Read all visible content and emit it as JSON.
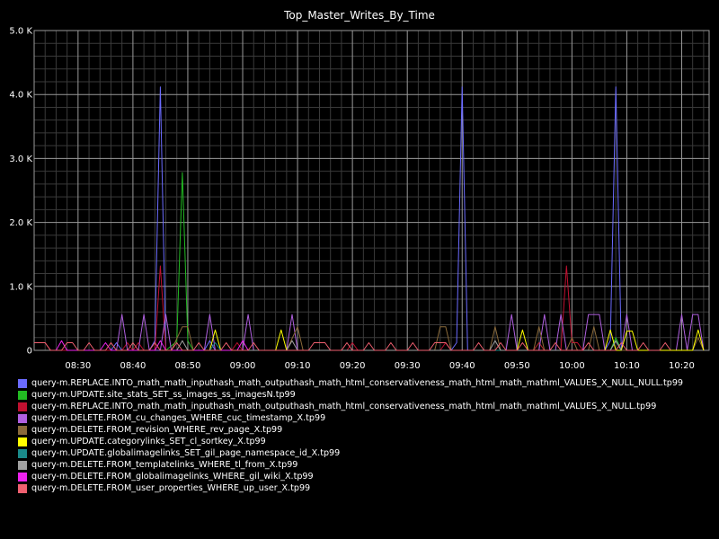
{
  "chart_data": {
    "type": "line",
    "title": "Top_Master_Writes_By_Time",
    "xlabel": "",
    "ylabel": "",
    "x_range": [
      "08:22",
      "10:25"
    ],
    "ylim": [
      0,
      5000
    ],
    "y_ticks": [
      {
        "value": 0,
        "label": "0"
      },
      {
        "value": 1000,
        "label": "1.0 K"
      },
      {
        "value": 2000,
        "label": "2.0 K"
      },
      {
        "value": 3000,
        "label": "3.0 K"
      },
      {
        "value": 4000,
        "label": "4.0 K"
      },
      {
        "value": 5000,
        "label": "5.0 K"
      }
    ],
    "x_ticks": [
      "08:30",
      "08:40",
      "08:50",
      "09:00",
      "09:10",
      "09:20",
      "09:30",
      "09:40",
      "09:50",
      "10:00",
      "10:10",
      "10:20"
    ],
    "grid": true,
    "legend_position": "bottom",
    "series": [
      {
        "name": "query-m.REPLACE.INTO_math_math_inputhash_math_outputhash_math_html_conservativeness_math_html_math_mathml_VALUES_X_NULL_NULL.tp99",
        "color": "#6b6bff",
        "points": [
          [
            "08:36",
            0
          ],
          [
            "08:37",
            120
          ],
          [
            "08:38",
            0
          ],
          [
            "08:43",
            0
          ],
          [
            "08:44",
            150
          ],
          [
            "08:45",
            4120
          ],
          [
            "08:46",
            0
          ],
          [
            "08:53",
            0
          ],
          [
            "08:54",
            150
          ],
          [
            "08:55",
            0
          ],
          [
            "09:38",
            0
          ],
          [
            "09:39",
            120
          ],
          [
            "09:40",
            4120
          ],
          [
            "09:41",
            0
          ],
          [
            "10:06",
            0
          ],
          [
            "10:07",
            150
          ],
          [
            "10:08",
            4120
          ],
          [
            "10:09",
            0
          ]
        ]
      },
      {
        "name": "query-m.UPDATE.site_stats_SET_ss_images_ss_imagesN.tp99",
        "color": "#22bb22",
        "points": [
          [
            "08:46",
            0
          ],
          [
            "08:48",
            140
          ],
          [
            "08:49",
            2780
          ],
          [
            "08:50",
            150
          ],
          [
            "08:51",
            0
          ],
          [
            "09:53",
            0
          ],
          [
            "09:54",
            120
          ],
          [
            "09:55",
            0
          ],
          [
            "10:07",
            0
          ],
          [
            "10:08",
            200
          ],
          [
            "10:09",
            0
          ]
        ]
      },
      {
        "name": "query-m.REPLACE.INTO_math_math_inputhash_math_outputhash_math_html_conservativeness_math_html_math_mathml_VALUES_X_NULL.tp99",
        "color": "#c01030",
        "points": [
          [
            "08:22",
            120
          ],
          [
            "08:24",
            120
          ],
          [
            "08:25",
            0
          ],
          [
            "08:38",
            0
          ],
          [
            "08:39",
            120
          ],
          [
            "08:40",
            0
          ],
          [
            "08:41",
            120
          ],
          [
            "08:42",
            0
          ],
          [
            "08:44",
            0
          ],
          [
            "08:45",
            1320
          ],
          [
            "08:46",
            0
          ],
          [
            "08:58",
            0
          ],
          [
            "08:59",
            120
          ],
          [
            "09:00",
            0
          ],
          [
            "09:19",
            0
          ],
          [
            "09:20",
            120
          ],
          [
            "09:21",
            0
          ],
          [
            "09:36",
            0
          ],
          [
            "09:37",
            120
          ],
          [
            "09:38",
            0
          ],
          [
            "09:53",
            0
          ],
          [
            "09:54",
            120
          ],
          [
            "09:55",
            0
          ],
          [
            "09:58",
            0
          ],
          [
            "09:59",
            1320
          ],
          [
            "10:00",
            120
          ],
          [
            "10:01",
            120
          ],
          [
            "10:02",
            0
          ]
        ]
      },
      {
        "name": "query-m.DELETE.FROM_cu_changes_WHERE_cuc_timestamp_X.tp99",
        "color": "#b060e0",
        "points": [
          [
            "08:37",
            0
          ],
          [
            "08:38",
            560
          ],
          [
            "08:39",
            0
          ],
          [
            "08:41",
            0
          ],
          [
            "08:42",
            560
          ],
          [
            "08:43",
            0
          ],
          [
            "08:45",
            0
          ],
          [
            "08:46",
            560
          ],
          [
            "08:47",
            0
          ],
          [
            "08:53",
            0
          ],
          [
            "08:54",
            560
          ],
          [
            "08:55",
            0
          ],
          [
            "09:00",
            0
          ],
          [
            "09:01",
            560
          ],
          [
            "09:02",
            0
          ],
          [
            "09:08",
            0
          ],
          [
            "09:09",
            560
          ],
          [
            "09:10",
            0
          ],
          [
            "09:48",
            0
          ],
          [
            "09:49",
            560
          ],
          [
            "09:50",
            0
          ],
          [
            "09:54",
            0
          ],
          [
            "09:55",
            560
          ],
          [
            "09:56",
            0
          ],
          [
            "09:57",
            0
          ],
          [
            "09:58",
            560
          ],
          [
            "09:59",
            0
          ],
          [
            "10:02",
            0
          ],
          [
            "10:03",
            560
          ],
          [
            "10:05",
            560
          ],
          [
            "10:06",
            0
          ],
          [
            "10:09",
            0
          ],
          [
            "10:10",
            560
          ],
          [
            "10:11",
            0
          ],
          [
            "10:19",
            0
          ],
          [
            "10:20",
            560
          ],
          [
            "10:21",
            0
          ],
          [
            "10:22",
            560
          ],
          [
            "10:23",
            560
          ],
          [
            "10:24",
            0
          ]
        ]
      },
      {
        "name": "query-m.DELETE.FROM_revision_WHERE_rev_page_X.tp99",
        "color": "#8a6a3a",
        "points": [
          [
            "08:47",
            0
          ],
          [
            "08:49",
            370
          ],
          [
            "08:50",
            370
          ],
          [
            "08:51",
            0
          ],
          [
            "09:08",
            0
          ],
          [
            "09:10",
            370
          ],
          [
            "09:11",
            0
          ],
          [
            "09:35",
            0
          ],
          [
            "09:36",
            370
          ],
          [
            "09:37",
            370
          ],
          [
            "09:38",
            0
          ],
          [
            "09:45",
            0
          ],
          [
            "09:46",
            370
          ],
          [
            "09:47",
            0
          ],
          [
            "09:53",
            0
          ],
          [
            "09:54",
            370
          ],
          [
            "09:55",
            0
          ],
          [
            "09:59",
            0
          ],
          [
            "10:00",
            200
          ],
          [
            "10:01",
            0
          ],
          [
            "10:03",
            0
          ],
          [
            "10:04",
            370
          ],
          [
            "10:05",
            0
          ],
          [
            "10:07",
            0
          ],
          [
            "10:08",
            150
          ],
          [
            "10:09",
            0
          ],
          [
            "10:22",
            0
          ],
          [
            "10:23",
            200
          ],
          [
            "10:24",
            0
          ]
        ]
      },
      {
        "name": "query-m.UPDATE.categorylinks_SET_cl_sortkey_X.tp99",
        "color": "#ffff00",
        "points": [
          [
            "08:54",
            0
          ],
          [
            "08:55",
            320
          ],
          [
            "08:56",
            0
          ],
          [
            "09:06",
            0
          ],
          [
            "09:07",
            320
          ],
          [
            "09:08",
            0
          ],
          [
            "09:50",
            0
          ],
          [
            "09:51",
            320
          ],
          [
            "09:52",
            0
          ],
          [
            "10:06",
            0
          ],
          [
            "10:07",
            320
          ],
          [
            "10:08",
            0
          ],
          [
            "10:09",
            0
          ],
          [
            "10:10",
            300
          ],
          [
            "10:11",
            300
          ],
          [
            "10:12",
            0
          ],
          [
            "10:22",
            0
          ],
          [
            "10:23",
            320
          ],
          [
            "10:24",
            0
          ]
        ]
      },
      {
        "name": "query-m.UPDATE.globalimagelinks_SET_gil_page_namespace_id_X.tp99",
        "color": "#1a8a8a",
        "points": [
          [
            "08:54",
            0
          ],
          [
            "08:55",
            120
          ],
          [
            "08:56",
            0
          ],
          [
            "10:07",
            0
          ],
          [
            "10:08",
            150
          ],
          [
            "10:09",
            0
          ]
        ]
      },
      {
        "name": "query-m.DELETE.FROM_templatelinks_WHERE_tl_from_X.tp99",
        "color": "#a0a0a0",
        "points": [
          [
            "08:48",
            0
          ],
          [
            "08:49",
            150
          ],
          [
            "08:50",
            0
          ],
          [
            "09:08",
            0
          ],
          [
            "09:09",
            150
          ],
          [
            "09:10",
            0
          ],
          [
            "09:45",
            0
          ],
          [
            "09:46",
            150
          ],
          [
            "09:47",
            0
          ],
          [
            "10:07",
            0
          ],
          [
            "10:08",
            150
          ],
          [
            "10:09",
            0
          ]
        ]
      },
      {
        "name": "query-m.DELETE.FROM_globalimagelinks_WHERE_gil_wiki_X.tp99",
        "color": "#ee22ee",
        "points": [
          [
            "08:26",
            0
          ],
          [
            "08:27",
            150
          ],
          [
            "08:28",
            0
          ],
          [
            "08:34",
            0
          ],
          [
            "08:35",
            120
          ],
          [
            "08:36",
            0
          ],
          [
            "08:44",
            0
          ],
          [
            "08:45",
            150
          ],
          [
            "08:46",
            0
          ],
          [
            "08:59",
            0
          ],
          [
            "09:00",
            150
          ],
          [
            "09:01",
            0
          ]
        ]
      },
      {
        "name": "query-m.DELETE.FROM_user_properties_WHERE_up_user_X.tp99",
        "color": "#f06070",
        "points": [
          [
            "08:22",
            120
          ],
          [
            "08:24",
            120
          ],
          [
            "08:25",
            0
          ],
          [
            "08:27",
            0
          ],
          [
            "08:28",
            120
          ],
          [
            "08:29",
            120
          ],
          [
            "08:30",
            0
          ],
          [
            "08:31",
            0
          ],
          [
            "08:32",
            120
          ],
          [
            "08:33",
            0
          ],
          [
            "08:35",
            0
          ],
          [
            "08:36",
            120
          ],
          [
            "08:37",
            0
          ],
          [
            "08:39",
            0
          ],
          [
            "08:40",
            120
          ],
          [
            "08:41",
            0
          ],
          [
            "08:43",
            0
          ],
          [
            "08:44",
            120
          ],
          [
            "08:45",
            0
          ],
          [
            "08:47",
            0
          ],
          [
            "08:48",
            120
          ],
          [
            "08:49",
            0
          ],
          [
            "08:51",
            0
          ],
          [
            "08:52",
            120
          ],
          [
            "08:53",
            0
          ],
          [
            "08:56",
            0
          ],
          [
            "08:57",
            120
          ],
          [
            "08:58",
            0
          ],
          [
            "09:01",
            0
          ],
          [
            "09:02",
            120
          ],
          [
            "09:03",
            0
          ],
          [
            "09:12",
            0
          ],
          [
            "09:13",
            120
          ],
          [
            "09:15",
            120
          ],
          [
            "09:16",
            0
          ],
          [
            "09:18",
            0
          ],
          [
            "09:19",
            120
          ],
          [
            "09:20",
            0
          ],
          [
            "09:22",
            0
          ],
          [
            "09:23",
            120
          ],
          [
            "09:24",
            0
          ],
          [
            "09:26",
            0
          ],
          [
            "09:27",
            120
          ],
          [
            "09:28",
            0
          ],
          [
            "09:30",
            0
          ],
          [
            "09:31",
            120
          ],
          [
            "09:32",
            0
          ],
          [
            "09:34",
            0
          ],
          [
            "09:35",
            120
          ],
          [
            "09:37",
            120
          ],
          [
            "09:38",
            0
          ],
          [
            "09:42",
            0
          ],
          [
            "09:43",
            120
          ],
          [
            "09:44",
            0
          ],
          [
            "09:46",
            0
          ],
          [
            "09:47",
            120
          ],
          [
            "09:48",
            0
          ],
          [
            "09:50",
            0
          ],
          [
            "09:51",
            120
          ],
          [
            "09:52",
            0
          ],
          [
            "09:56",
            0
          ],
          [
            "09:57",
            120
          ],
          [
            "09:58",
            0
          ],
          [
            "10:02",
            0
          ],
          [
            "10:03",
            120
          ],
          [
            "10:04",
            0
          ],
          [
            "10:08",
            0
          ],
          [
            "10:09",
            120
          ],
          [
            "10:10",
            0
          ],
          [
            "10:12",
            0
          ],
          [
            "10:13",
            120
          ],
          [
            "10:14",
            0
          ],
          [
            "10:16",
            0
          ],
          [
            "10:17",
            120
          ],
          [
            "10:18",
            0
          ]
        ]
      }
    ]
  }
}
